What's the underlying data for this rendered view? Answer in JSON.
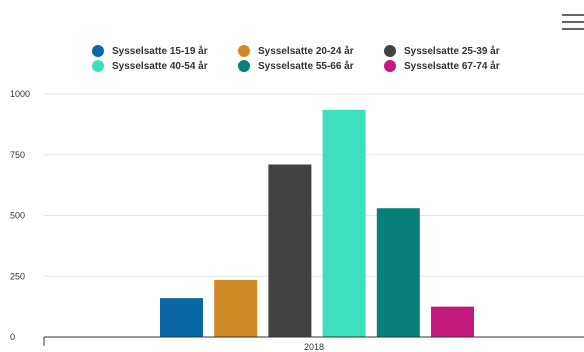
{
  "menu": {
    "icon": "hamburger-menu-icon"
  },
  "chart_data": {
    "type": "bar",
    "title": "",
    "xlabel": "",
    "ylabel": "",
    "categories": [
      "2018"
    ],
    "series": [
      {
        "name": "Sysselsatte 15-19 år",
        "color": "#0c67a6",
        "values": [
          160
        ]
      },
      {
        "name": "Sysselsatte 20-24 år",
        "color": "#d08a26",
        "values": [
          235
        ]
      },
      {
        "name": "Sysselsatte 25-39 år",
        "color": "#424242",
        "values": [
          710
        ]
      },
      {
        "name": "Sysselsatte 40-54 år",
        "color": "#3de0be",
        "values": [
          935
        ]
      },
      {
        "name": "Sysselsatte 55-66 år",
        "color": "#08807a",
        "values": [
          530
        ]
      },
      {
        "name": "Sysselsatte 67-74 år",
        "color": "#c4197e",
        "values": [
          125
        ]
      }
    ],
    "yticks": [
      0,
      250,
      500,
      750,
      1000
    ],
    "ylim": [
      0,
      1000
    ],
    "grid": true,
    "legend_position": "top"
  }
}
